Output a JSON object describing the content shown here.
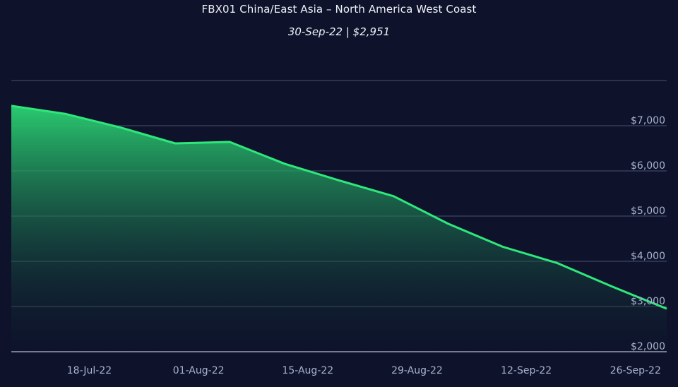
{
  "chart_data": {
    "type": "area",
    "title": "FBX01 China/East Asia – North America West Coast",
    "subtitle": "30-Sep-22 | $2,951",
    "xlabel": "",
    "ylabel": "",
    "x": [
      "2022-07-08",
      "2022-07-15",
      "2022-07-22",
      "2022-07-29",
      "2022-08-05",
      "2022-08-12",
      "2022-08-19",
      "2022-08-26",
      "2022-09-02",
      "2022-09-09",
      "2022-09-16",
      "2022-09-23",
      "2022-09-30"
    ],
    "series": [
      {
        "values": [
          7440,
          7260,
          6960,
          6610,
          6640,
          6160,
          5790,
          5440,
          4830,
          4320,
          3960,
          3440,
          2951
        ]
      }
    ],
    "x_ticks": [
      {
        "date": "2022-07-18",
        "label": "18-Jul-22"
      },
      {
        "date": "2022-08-01",
        "label": "01-Aug-22"
      },
      {
        "date": "2022-08-15",
        "label": "15-Aug-22"
      },
      {
        "date": "2022-08-29",
        "label": "29-Aug-22"
      },
      {
        "date": "2022-09-12",
        "label": "12-Sep-22"
      },
      {
        "date": "2022-09-26",
        "label": "26-Sep-22"
      }
    ],
    "y_ticks": [
      {
        "value": 2000,
        "label": "$2,000"
      },
      {
        "value": 3000,
        "label": "$3,000"
      },
      {
        "value": 4000,
        "label": "$4,000"
      },
      {
        "value": 5000,
        "label": "$5,000"
      },
      {
        "value": 6000,
        "label": "$6,000"
      },
      {
        "value": 7000,
        "label": "$7,000"
      }
    ],
    "xlim": [
      "2022-07-08",
      "2022-09-30"
    ],
    "ylim": [
      2000,
      8000
    ],
    "grid": true,
    "colors": {
      "background": "#0e132b",
      "line": "#2ee87b",
      "fill_top": "#2bd473",
      "fill_bottom": "#0e132b",
      "grid": "#4a5272",
      "baseline": "#c9cfdf"
    }
  }
}
